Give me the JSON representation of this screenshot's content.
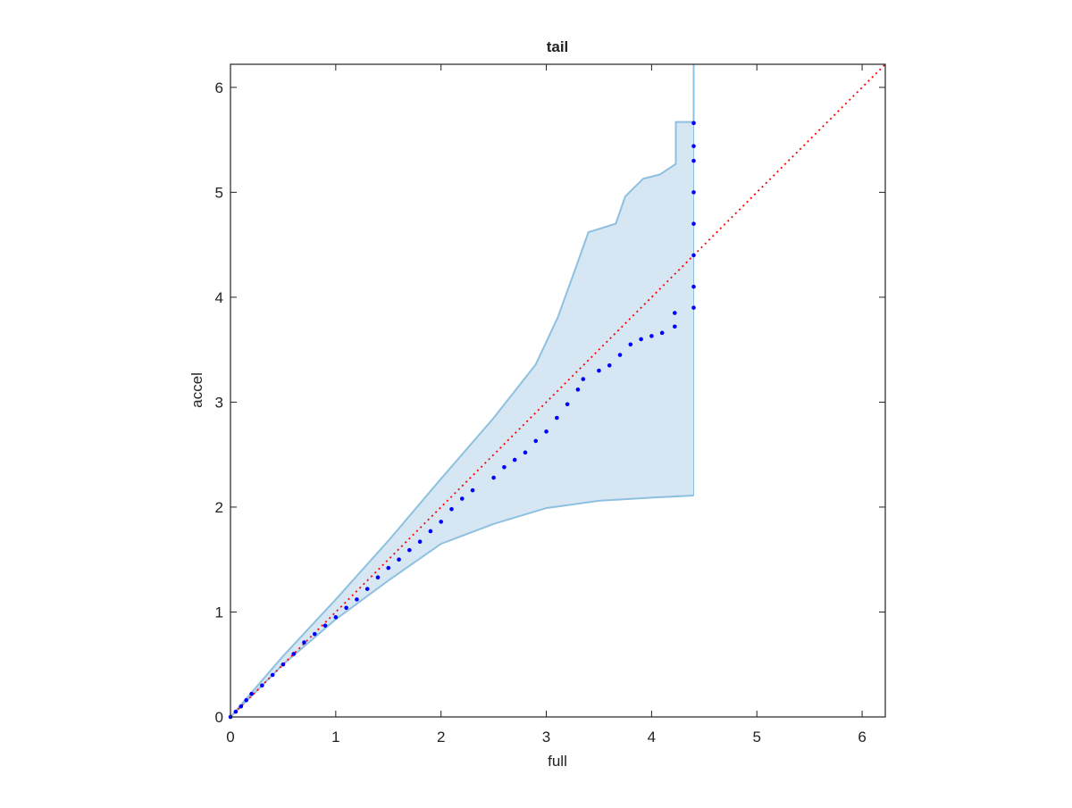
{
  "chart_data": {
    "type": "scatter",
    "title": "tail",
    "x_label": "full",
    "y_label": "accel",
    "xlim": [
      0,
      6.22
    ],
    "ylim": [
      0,
      6.22
    ],
    "xticks": [
      0,
      1,
      2,
      3,
      4,
      5,
      6
    ],
    "yticks": [
      0,
      1,
      2,
      3,
      4,
      5,
      6
    ],
    "series": [
      {
        "color": "#0000ff",
        "x": [
          0,
          0.05,
          0.1,
          0.15,
          0.2,
          0.3,
          0.4,
          0.5,
          0.6,
          0.7,
          0.8,
          0.9,
          1.0,
          1.1,
          1.2,
          1.3,
          1.4,
          1.5,
          1.6,
          1.7,
          1.8,
          1.9,
          2.0,
          2.1,
          2.2,
          2.3,
          2.5,
          2.6,
          2.7,
          2.8,
          2.9,
          3.0,
          3.1,
          3.2,
          3.3,
          3.35,
          3.5,
          3.6,
          3.7,
          3.8,
          3.9,
          4.0,
          4.1,
          4.22,
          4.22,
          4.4,
          4.4,
          4.4,
          4.4,
          4.4,
          4.4,
          4.4,
          4.4
        ],
        "values": [
          0,
          0.05,
          0.1,
          0.16,
          0.22,
          0.3,
          0.4,
          0.5,
          0.6,
          0.71,
          0.79,
          0.87,
          0.95,
          1.04,
          1.12,
          1.22,
          1.33,
          1.42,
          1.5,
          1.59,
          1.67,
          1.77,
          1.86,
          1.98,
          2.08,
          2.16,
          2.28,
          2.38,
          2.45,
          2.52,
          2.63,
          2.72,
          2.85,
          2.98,
          3.12,
          3.22,
          3.3,
          3.35,
          3.45,
          3.55,
          3.6,
          3.63,
          3.66,
          3.72,
          3.85,
          3.9,
          4.1,
          4.4,
          4.7,
          5.0,
          5.3,
          5.44,
          5.66
        ]
      }
    ],
    "band": {
      "color": "#d6e6f3",
      "edge_color": "#8ec0e0",
      "upper": {
        "x": [
          0,
          0.5,
          1,
          1.5,
          2,
          2.5,
          2.9,
          3.11,
          3.28,
          3.4,
          3.66,
          3.75,
          3.92,
          4.08,
          4.23,
          4.23,
          4.4,
          4.4
        ],
        "values": [
          0,
          0.58,
          1.12,
          1.68,
          2.27,
          2.85,
          3.36,
          3.81,
          4.28,
          4.62,
          4.7,
          4.96,
          5.13,
          5.17,
          5.27,
          5.67,
          5.67,
          6.22
        ]
      },
      "lower": {
        "x": [
          0,
          0.5,
          1,
          1.5,
          2,
          2.5,
          3,
          3.5,
          4,
          4.4
        ],
        "values": [
          0,
          0.5,
          0.93,
          1.3,
          1.65,
          1.84,
          1.99,
          2.06,
          2.09,
          2.11
        ]
      }
    },
    "reference_line": {
      "color": "#ff0000",
      "x": [
        0,
        6.22
      ],
      "values": [
        0,
        6.22
      ]
    }
  }
}
